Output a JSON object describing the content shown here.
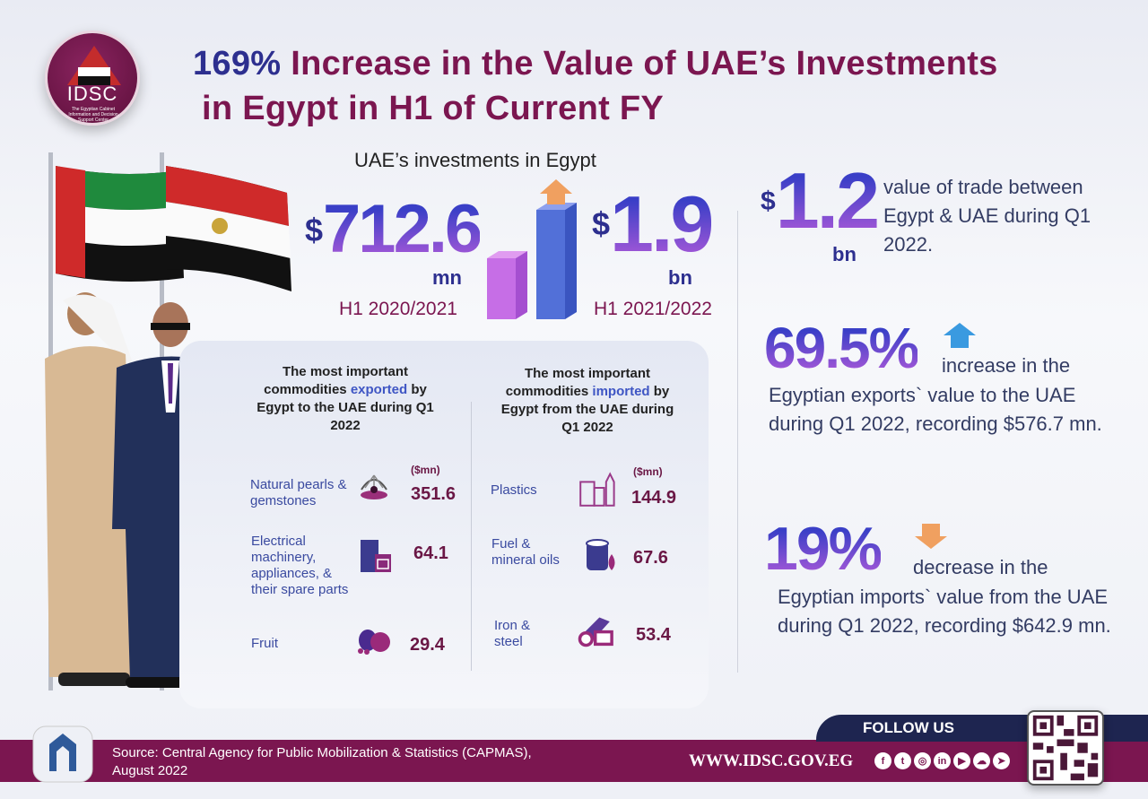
{
  "logo": {
    "name": "IDSC",
    "subtitle": "The Egyptian Cabinet Information and Decision Support Center"
  },
  "title": {
    "percent": "169%",
    "line1_rest": " Increase in the Value of UAE’s Investments",
    "line2": "in Egypt in H1 of Current FY"
  },
  "investments": {
    "heading": "UAE’s investments in Egypt",
    "previous": {
      "currency": "$",
      "value": "712.6",
      "unit": "mn",
      "period": "H1 2020/2021"
    },
    "current": {
      "currency": "$",
      "value": "1.9",
      "unit": "bn",
      "period": "H1 2021/2022"
    }
  },
  "exports": {
    "heading_pre": "The most important commodities ",
    "heading_hl": "exported",
    "heading_post": " by Egypt to the UAE during Q1 2022",
    "unit": "($mn)",
    "items": [
      {
        "label": "Natural pearls & gemstones",
        "icon": "pearl-oyster-icon",
        "value": "351.6"
      },
      {
        "label": "Electrical machinery, appliances, & their spare parts",
        "icon": "fridge-oven-icon",
        "value": "64.1"
      },
      {
        "label": "Fruit",
        "icon": "fruit-icon",
        "value": "29.4"
      }
    ]
  },
  "imports": {
    "heading_pre": "The most important commodities ",
    "heading_hl": "imported",
    "heading_post": " by Egypt from the UAE during Q1 2022",
    "unit": "($mn)",
    "items": [
      {
        "label": "Plastics",
        "icon": "plastic-containers-icon",
        "value": "144.9"
      },
      {
        "label": "Fuel & mineral oils",
        "icon": "oil-barrel-icon",
        "value": "67.6"
      },
      {
        "label": "Iron & steel",
        "icon": "steel-bars-icon",
        "value": "53.4"
      }
    ]
  },
  "trade": {
    "currency": "$",
    "value": "1.2",
    "unit": "bn",
    "text": "value of trade between Egypt & UAE during Q1 2022."
  },
  "exports_change": {
    "value": "69.5%",
    "lead": "increase in the",
    "text": "Egyptian exports` value to the UAE during Q1 2022, recording $576.7 mn.",
    "direction": "up"
  },
  "imports_change": {
    "value": "19%",
    "lead": "decrease in the",
    "text": "Egyptian imports` value from the UAE during Q1 2022, recording $642.9 mn.",
    "direction": "down"
  },
  "footer": {
    "source": "Source: Central Agency for Public Mobilization & Statistics (CAPMAS), August 2022",
    "follow": "FOLLOW US",
    "url": "WWW.IDSC.GOV.EG",
    "social": [
      "facebook-icon",
      "twitter-icon",
      "instagram-icon",
      "linkedin-icon",
      "youtube-icon",
      "soundcloud-icon",
      "telegram-icon"
    ]
  },
  "colors": {
    "maroon": "#7b1650",
    "navy": "#2d2f8f",
    "accent_blue": "#3f56c4",
    "arrow_orange": "#f0a060",
    "footer_tab": "#1e2550"
  }
}
